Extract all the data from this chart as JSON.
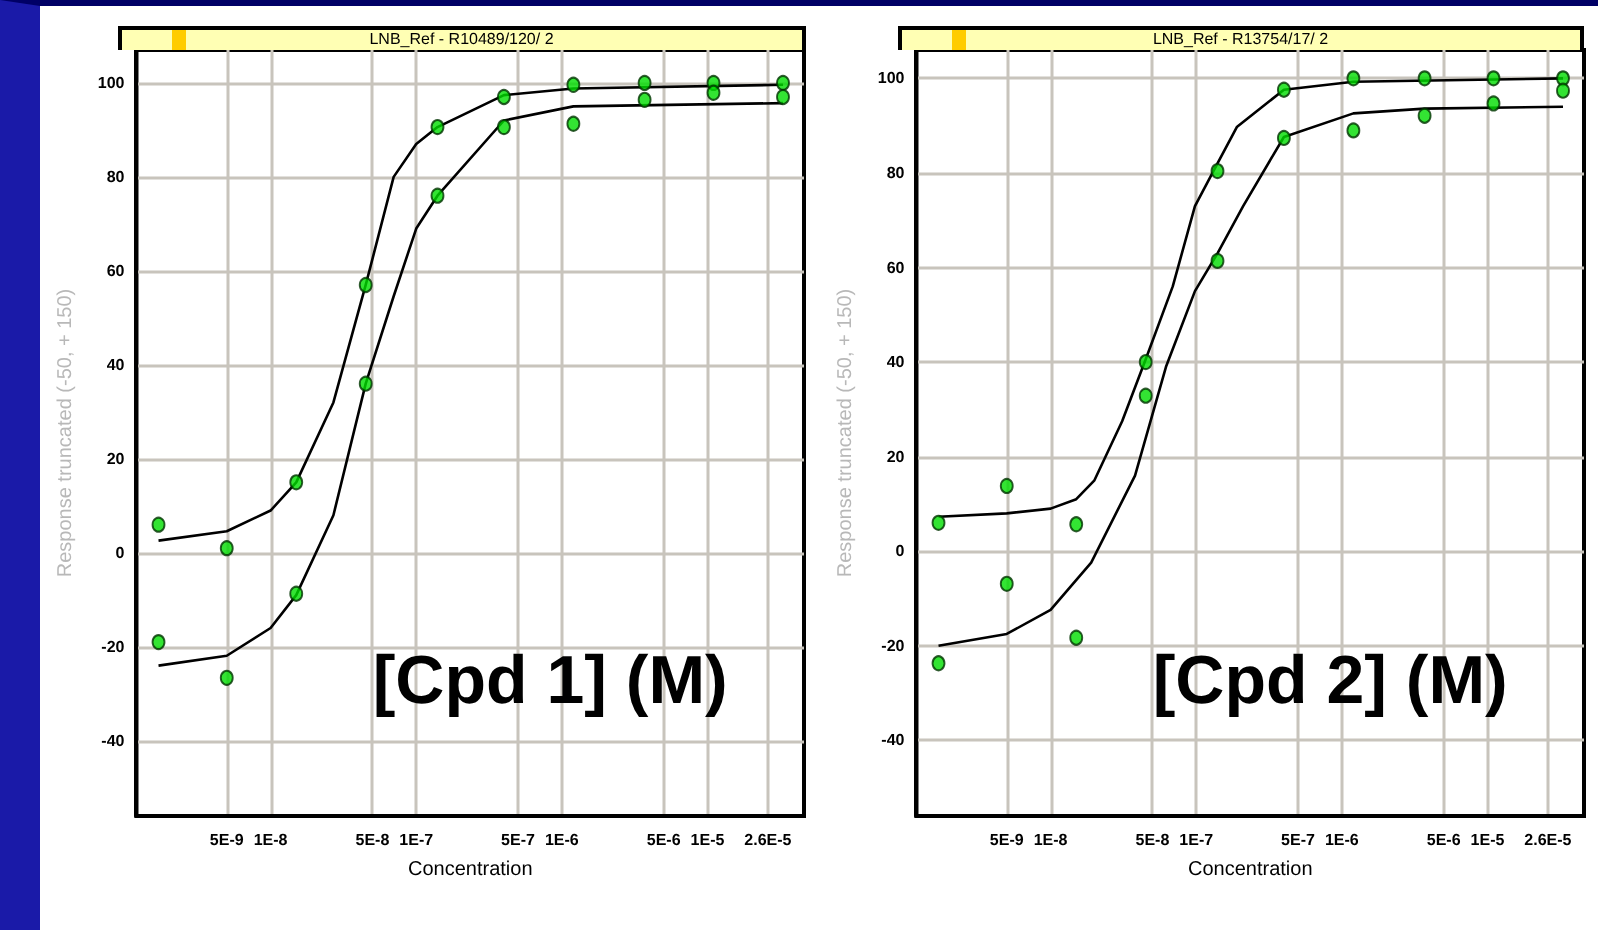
{
  "chart_data": [
    {
      "type": "scatter",
      "title": "LNB_Ref - R10489/120/ 2",
      "xlabel": "Concentration",
      "ylabel": "Response truncated (-50, + 150)",
      "annotations": [
        "[Cpd 1] (M)"
      ],
      "log": "x",
      "grid": true,
      "marker": "circle",
      "xlim": [
        1.2e-09,
        4.6e-05
      ],
      "xticks": [
        {
          "value": 5e-09,
          "label": "5E-9"
        },
        {
          "value": 1e-08,
          "label": "1E-8"
        },
        {
          "value": 5e-08,
          "label": "5E-8"
        },
        {
          "value": 1e-07,
          "label": "1E-7"
        },
        {
          "value": 5e-07,
          "label": "5E-7"
        },
        {
          "value": 1e-06,
          "label": "1E-6"
        },
        {
          "value": 5e-06,
          "label": "5E-6"
        },
        {
          "value": 1e-05,
          "label": "1E-5"
        },
        {
          "value": 2.6e-05,
          "label": "2.6E-5"
        }
      ],
      "ylim": [
        -56,
        107
      ],
      "yticks": [
        -40,
        -20,
        0,
        20,
        40,
        60,
        80,
        100
      ],
      "series": [
        {
          "color": "#00dd00",
          "x": [
            1.7e-09,
            5e-09,
            1.5e-08,
            4.5e-08,
            1.4e-07,
            4e-07,
            1.2e-06,
            3.7e-06,
            1.1e-05,
            3.3e-05
          ],
          "values": [
            6,
            1,
            15,
            57,
            90.6,
            97,
            99.6,
            100,
            100,
            100
          ]
        },
        {
          "color": "#00dd00",
          "x": [
            1.7e-09,
            5e-09,
            1.5e-08,
            4.5e-08,
            1.4e-07,
            4e-07,
            1.2e-06,
            3.7e-06,
            1.1e-05,
            3.3e-05
          ],
          "values": [
            -19,
            -26.6,
            -8.7,
            36,
            76,
            90.6,
            91.3,
            96.4,
            97.9,
            97
          ]
        },
        {
          "type": "line",
          "color": "#000000",
          "marker": "none",
          "x": [
            1.7e-09,
            5e-09,
            1e-08,
            1.5e-08,
            2.7e-08,
            4.5e-08,
            7e-08,
            1e-07,
            1.4e-07,
            4e-07,
            1.2e-06,
            3.3e-05
          ],
          "values": [
            2.6,
            4.6,
            9,
            15,
            32,
            57,
            80,
            87,
            90.6,
            97.4,
            98.8,
            99.6
          ]
        },
        {
          "type": "line",
          "color": "#000000",
          "marker": "none",
          "x": [
            1.7e-09,
            5e-09,
            1e-08,
            1.5e-08,
            2.7e-08,
            4.5e-08,
            7e-08,
            1e-07,
            1.4e-07,
            4e-07,
            1.2e-06,
            3.3e-05
          ],
          "values": [
            -24,
            -21.9,
            -16,
            -9,
            8,
            36,
            54.6,
            69,
            76,
            92,
            95,
            95.7
          ]
        }
      ]
    },
    {
      "type": "scatter",
      "title": "LNB_Ref - R13754/17/ 2",
      "xlabel": "Concentration",
      "ylabel": "Response truncated (-50, + 150)",
      "annotations": [
        "[Cpd 2] (M)"
      ],
      "log": "x",
      "grid": true,
      "marker": "circle",
      "xlim": [
        1.2e-09,
        4.6e-05
      ],
      "xticks": [
        {
          "value": 5e-09,
          "label": "5E-9"
        },
        {
          "value": 1e-08,
          "label": "1E-8"
        },
        {
          "value": 5e-08,
          "label": "5E-8"
        },
        {
          "value": 1e-07,
          "label": "1E-7"
        },
        {
          "value": 5e-07,
          "label": "5E-7"
        },
        {
          "value": 1e-06,
          "label": "1E-6"
        },
        {
          "value": 5e-06,
          "label": "5E-6"
        },
        {
          "value": 1e-05,
          "label": "1E-5"
        },
        {
          "value": 2.6e-05,
          "label": "2.6E-5"
        }
      ],
      "ylim": [
        -56,
        106
      ],
      "yticks": [
        -40,
        -20,
        0,
        20,
        40,
        60,
        80,
        100
      ],
      "series": [
        {
          "color": "#00dd00",
          "x": [
            1.7e-09,
            5e-09,
            1.5e-08,
            4.5e-08,
            1.4e-07,
            4e-07,
            1.2e-06,
            3.7e-06,
            1.1e-05,
            3.3e-05
          ],
          "values": [
            6,
            13.8,
            5.7,
            40,
            80.4,
            97.6,
            100,
            100,
            100,
            100
          ]
        },
        {
          "color": "#00dd00",
          "x": [
            1.7e-09,
            5e-09,
            1.5e-08,
            4.5e-08,
            1.4e-07,
            4e-07,
            1.2e-06,
            3.7e-06,
            1.1e-05,
            3.3e-05
          ],
          "values": [
            -23.7,
            -6.9,
            -18.3,
            32.9,
            61.4,
            87.4,
            89,
            92.1,
            94.7,
            97.4
          ]
        },
        {
          "type": "line",
          "color": "#000000",
          "marker": "none",
          "x": [
            1.7e-09,
            5e-09,
            1e-08,
            1.5e-08,
            2e-08,
            3.1e-08,
            4.5e-08,
            6.9e-08,
            9.8e-08,
            1.4e-07,
            1.9e-07,
            4e-07,
            1.2e-06,
            3.3e-05
          ],
          "values": [
            7.3,
            8,
            9,
            11,
            15,
            27.5,
            40.6,
            56,
            73,
            82,
            89.7,
            97.6,
            99.3,
            100
          ]
        },
        {
          "type": "line",
          "color": "#000000",
          "marker": "none",
          "x": [
            1.7e-09,
            5e-09,
            1e-08,
            1.9e-08,
            3.8e-08,
            6.2e-08,
            9.8e-08,
            1.4e-07,
            2.1e-07,
            4e-07,
            1.2e-06,
            3.7e-06,
            3.3e-05
          ],
          "values": [
            -20,
            -17.5,
            -12.4,
            -2.4,
            16,
            39,
            55,
            63,
            73,
            87.6,
            92.6,
            93.6,
            94
          ]
        }
      ]
    }
  ]
}
